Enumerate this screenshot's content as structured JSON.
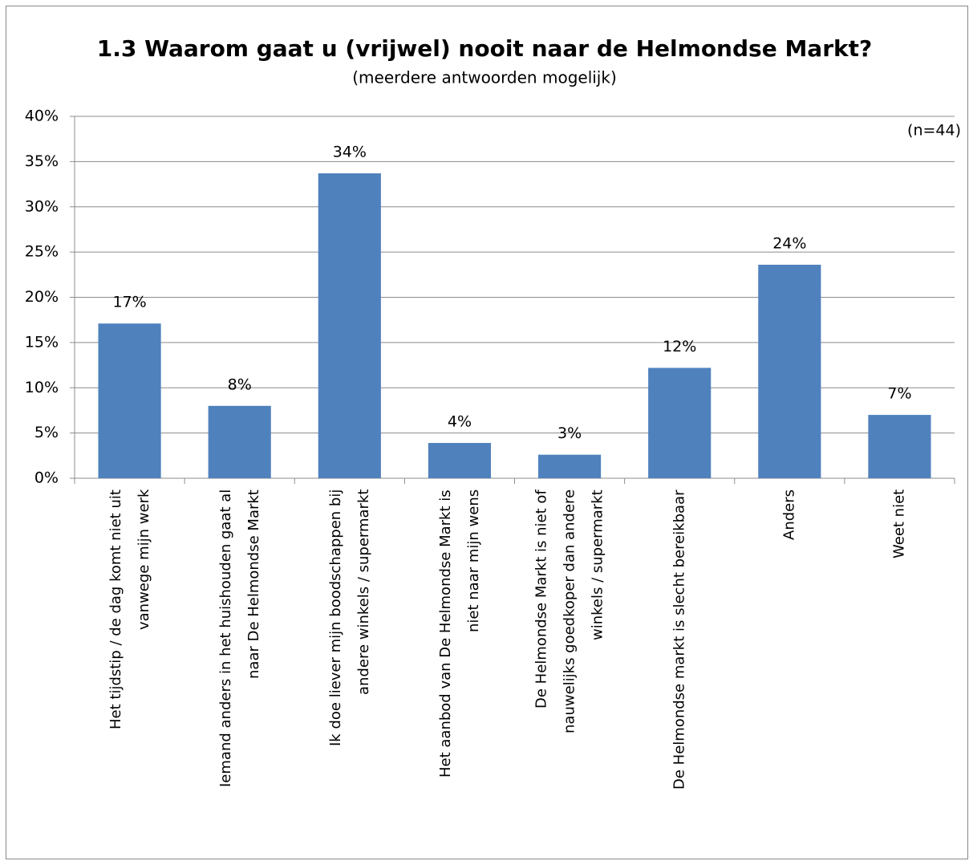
{
  "chart_data": {
    "type": "bar",
    "title": "1.3 Waarom gaat u (vrijwel) nooit naar de Helmondse Markt?",
    "subtitle": "(meerdere antwoorden mogelijk)",
    "annotation": "(n=44)",
    "categories": [
      "Het tijdstip / de dag komt niet uit\nvanwege mijn werk",
      "Iemand anders in het huishouden gaat al\nnaar De Helmondse Markt",
      "Ik doe liever mijn boodschappen bij\nandere winkels / supermarkt",
      "Het aanbod van De Helmondse Markt is\nniet naar mijn wens",
      "De Helmondse Markt is niet of\nnauwelijks goedkoper dan andere\nwinkels / supermarkt",
      "De Helmondse markt is slecht bereikbaar",
      "Anders",
      "Weet niet"
    ],
    "values": [
      17.1,
      8.0,
      33.7,
      3.9,
      2.6,
      12.2,
      23.6,
      7.0
    ],
    "value_labels": [
      "17%",
      "8%",
      "34%",
      "4%",
      "3%",
      "12%",
      "24%",
      "7%"
    ],
    "color": "#4f81bd",
    "ylim": [
      0,
      40
    ],
    "yticks": [
      {
        "value": 0,
        "label": "0%"
      },
      {
        "value": 5,
        "label": "5%"
      },
      {
        "value": 10,
        "label": "10%"
      },
      {
        "value": 15,
        "label": "15%"
      },
      {
        "value": 20,
        "label": "20%"
      },
      {
        "value": 25,
        "label": "25%"
      },
      {
        "value": 30,
        "label": "30%"
      },
      {
        "value": 35,
        "label": "35%"
      },
      {
        "value": 40,
        "label": "40%"
      }
    ],
    "grid": true
  }
}
